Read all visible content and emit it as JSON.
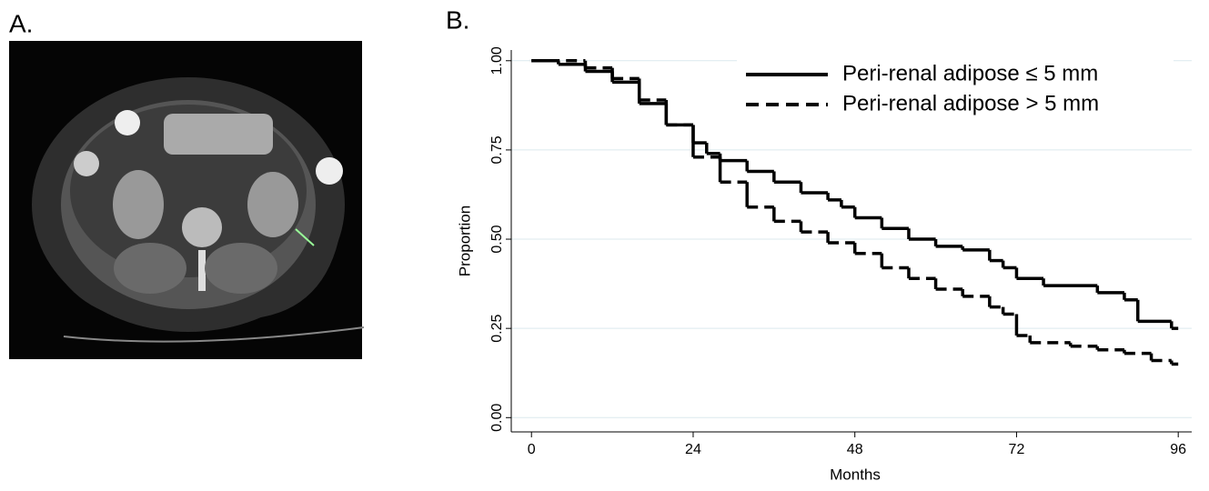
{
  "panel_labels": [
    "A.",
    "B."
  ],
  "chart_data": {
    "type": "step",
    "x_label": "Months",
    "y_label": "Proportion",
    "xlim": [
      -3,
      98
    ],
    "ylim": [
      -0.04,
      1.03
    ],
    "xticks": [
      0,
      24,
      48,
      72,
      96
    ],
    "yticks": [
      {
        "value": 0,
        "label": "0.00"
      },
      {
        "value": 0.25,
        "label": "0.25"
      },
      {
        "value": 0.5,
        "label": "0.50"
      },
      {
        "value": 0.75,
        "label": "0.75"
      },
      {
        "value": 1,
        "label": "1.00"
      }
    ],
    "grid": true,
    "legend": "upper right",
    "series": [
      {
        "name": "Peri-renal adipose ≤ 5 mm",
        "color": "#000000",
        "dash": false,
        "x": [
          0,
          4,
          8,
          12,
          16,
          20,
          24,
          26,
          28,
          32,
          36,
          40,
          44,
          46,
          48,
          52,
          56,
          60,
          64,
          68,
          70,
          72,
          76,
          84,
          88,
          90,
          95
        ],
        "values": [
          1.0,
          0.99,
          0.97,
          0.94,
          0.88,
          0.82,
          0.77,
          0.74,
          0.72,
          0.69,
          0.66,
          0.63,
          0.61,
          0.59,
          0.56,
          0.53,
          0.5,
          0.48,
          0.47,
          0.44,
          0.42,
          0.39,
          0.37,
          0.35,
          0.33,
          0.27,
          0.25
        ]
      },
      {
        "name": "Peri-renal adipose > 5 mm",
        "color": "#000000",
        "dash": true,
        "x": [
          0,
          8,
          12,
          16,
          20,
          24,
          28,
          32,
          36,
          40,
          44,
          48,
          52,
          56,
          60,
          64,
          68,
          70,
          72,
          74,
          80,
          84,
          88,
          92,
          95
        ],
        "values": [
          1.0,
          0.98,
          0.95,
          0.89,
          0.82,
          0.73,
          0.66,
          0.59,
          0.55,
          0.52,
          0.49,
          0.46,
          0.42,
          0.39,
          0.36,
          0.34,
          0.31,
          0.29,
          0.23,
          0.21,
          0.2,
          0.19,
          0.18,
          0.16,
          0.15
        ]
      }
    ]
  }
}
